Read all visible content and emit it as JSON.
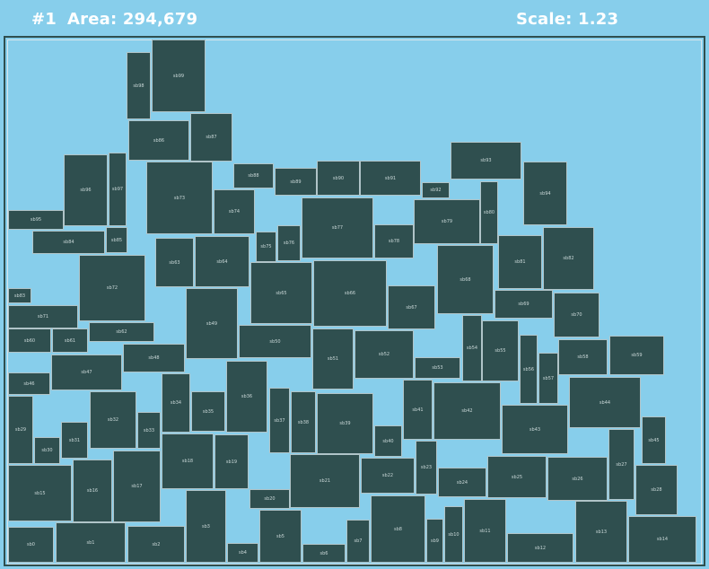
{
  "header": {
    "iteration": "#1",
    "area": "Area: 294,679",
    "scale": "Scale: 1.23"
  },
  "colors": {
    "background": "#87ceeb",
    "block": "#2f4f4f",
    "block_border": "#b0c4c8",
    "header_text": "#ffffff"
  },
  "blocks": [
    "sb0",
    "sb1",
    "sb2",
    "sb3",
    "sb4",
    "sb5",
    "sb6",
    "sb7",
    "sb8",
    "sb9",
    "sb10",
    "sb11",
    "sb12",
    "sb13",
    "sb14",
    "sb15",
    "sb16",
    "sb17",
    "sb18",
    "sb19",
    "sb20",
    "sb21",
    "sb22",
    "sb23",
    "sb24",
    "sb25",
    "sb26",
    "sb27",
    "sb28",
    "sb29",
    "sb30",
    "sb31",
    "sb32",
    "sb33",
    "sb34",
    "sb35",
    "sb36",
    "sb37",
    "sb38",
    "sb39",
    "sb40",
    "sb41",
    "sb42",
    "sb43",
    "sb44",
    "sb45",
    "sb46",
    "sb47",
    "sb48",
    "sb49",
    "sb50",
    "sb51",
    "sb52",
    "sb53",
    "sb54",
    "sb55",
    "sb56",
    "sb57",
    "sb58",
    "sb59",
    "sb60",
    "sb61",
    "sb62",
    "sb63",
    "sb64",
    "sb65",
    "sb66",
    "sb67",
    "sb68",
    "sb69",
    "sb70",
    "sb71",
    "sb72",
    "sb73",
    "sb74",
    "sb75",
    "sb76",
    "sb77",
    "sb78",
    "sb79",
    "sb80",
    "sb81",
    "sb82",
    "sb83",
    "sb84",
    "sb85",
    "sb86",
    "sb87",
    "sb88",
    "sb89",
    "sb90",
    "sb91",
    "sb92",
    "sb93",
    "sb94",
    "sb95",
    "sb96",
    "sb97",
    "sb98",
    "sb99"
  ]
}
